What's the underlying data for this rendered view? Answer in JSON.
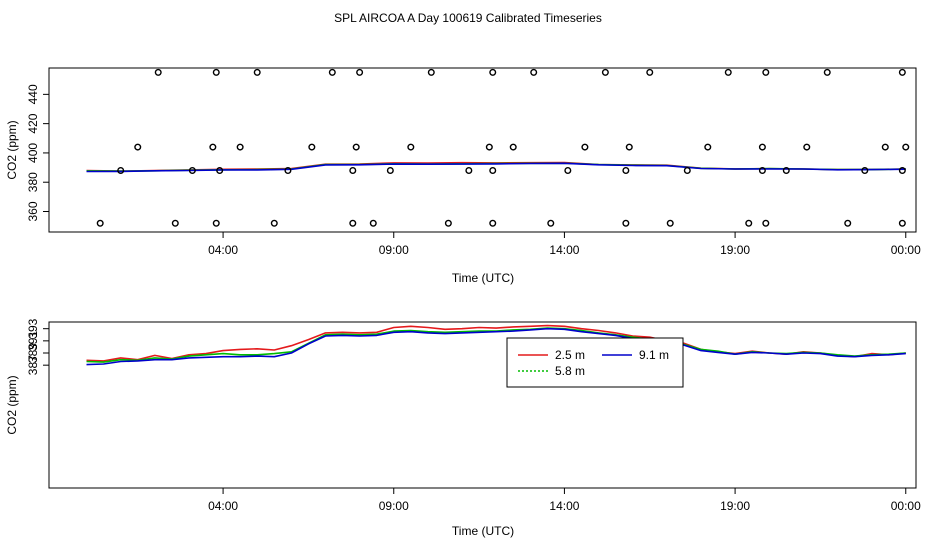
{
  "title": "SPL AIRCOA A  Day 100619  Calibrated Timeseries",
  "chart_data": [
    {
      "type": "line",
      "xlabel": "Time (UTC)",
      "ylabel": "CO2 (ppm)",
      "x_units": "hours since 00:00 UTC",
      "xlim": [
        -1.1,
        24.3
      ],
      "ylim": [
        346,
        458
      ],
      "x_ticks": [
        {
          "value": 4,
          "label": "04:00"
        },
        {
          "value": 9,
          "label": "09:00"
        },
        {
          "value": 14,
          "label": "14:00"
        },
        {
          "value": 19,
          "label": "19:00"
        },
        {
          "value": 24,
          "label": "00:00"
        }
      ],
      "y_ticks": [
        {
          "value": 360,
          "label": "360"
        },
        {
          "value": 380,
          "label": "380"
        },
        {
          "value": 400,
          "label": "400"
        },
        {
          "value": 420,
          "label": "420"
        },
        {
          "value": 440,
          "label": "440"
        }
      ],
      "series": [
        {
          "name": "2.5 m",
          "color": "#e41a1c",
          "x": [
            0,
            1,
            2,
            3,
            4,
            5,
            6,
            7,
            8,
            9,
            10,
            11,
            12,
            13,
            14,
            15,
            16,
            17,
            18,
            19,
            20,
            21,
            22,
            23,
            24
          ],
          "y": [
            388.0,
            387.6,
            387.9,
            388.4,
            388.8,
            389.0,
            389.4,
            392.3,
            392.4,
            393.2,
            393.1,
            393.3,
            393.2,
            393.3,
            393.4,
            392.1,
            391.8,
            391.6,
            389.6,
            389.1,
            389.2,
            389.0,
            388.6,
            388.7,
            389.0
          ]
        },
        {
          "name": "5.8 m",
          "color": "#00bb00",
          "x": [
            0,
            1,
            2,
            3,
            4,
            5,
            6,
            7,
            8,
            9,
            10,
            11,
            12,
            13,
            14,
            15,
            16,
            17,
            18,
            19,
            20,
            21,
            22,
            23,
            24
          ],
          "y": [
            387.7,
            387.6,
            387.8,
            388.2,
            388.5,
            388.6,
            389.0,
            392.0,
            392.1,
            392.6,
            392.4,
            392.6,
            392.7,
            392.9,
            393.0,
            392.0,
            391.6,
            391.4,
            389.5,
            389.0,
            389.3,
            389.0,
            388.6,
            388.6,
            389.0
          ]
        },
        {
          "name": "9.1 m",
          "color": "#0000cc",
          "x": [
            0,
            1,
            2,
            3,
            4,
            5,
            6,
            7,
            8,
            9,
            10,
            11,
            12,
            13,
            14,
            15,
            16,
            17,
            18,
            19,
            20,
            21,
            22,
            23,
            24
          ],
          "y": [
            387.3,
            387.4,
            387.8,
            388.0,
            388.4,
            388.4,
            388.8,
            391.8,
            391.9,
            392.4,
            392.3,
            392.4,
            392.5,
            392.8,
            392.9,
            391.9,
            391.4,
            391.3,
            389.4,
            389.0,
            389.1,
            389.0,
            388.5,
            388.6,
            388.9
          ]
        },
        {
          "name": "",
          "type": "scatter",
          "marker": "open-circle",
          "color": "#000000",
          "x": [
            0.4,
            1.0,
            1.5,
            2.1,
            2.6,
            3.1,
            3.7,
            3.8,
            3.8,
            3.9,
            4.5,
            5.0,
            5.5,
            5.9,
            6.6,
            7.2,
            7.8,
            7.8,
            7.9,
            8.0,
            8.4,
            8.9,
            9.5,
            10.1,
            10.6,
            11.2,
            11.8,
            11.9,
            11.9,
            11.9,
            12.5,
            13.1,
            13.6,
            14.1,
            14.6,
            15.2,
            15.8,
            15.8,
            15.9,
            16.5,
            17.1,
            17.6,
            18.2,
            18.8,
            19.4,
            19.8,
            19.8,
            19.9,
            19.9,
            20.5,
            21.1,
            21.7,
            22.3,
            22.8,
            23.4,
            23.9,
            23.9,
            23.9,
            24.0
          ],
          "y": [
            352,
            388,
            404,
            455,
            352,
            388,
            404,
            455,
            352,
            388,
            404,
            455,
            352,
            388,
            404,
            455,
            352,
            388,
            404,
            455,
            352,
            388,
            404,
            455,
            352,
            388,
            404,
            455,
            352,
            388,
            404,
            455,
            352,
            388,
            404,
            455,
            352,
            388,
            404,
            455,
            352,
            388,
            404,
            455,
            352,
            388,
            404,
            455,
            352,
            388,
            404,
            455,
            352,
            388,
            404,
            455,
            352,
            388,
            404
          ]
        }
      ]
    },
    {
      "type": "line",
      "xlabel": "Time (UTC)",
      "ylabel": "CO2 (ppm)",
      "x_units": "hours since 00:00 UTC",
      "xlim": [
        -1.1,
        24.3
      ],
      "ylim": [
        366.8,
        394.1
      ],
      "x_ticks": [
        {
          "value": 4,
          "label": "04:00"
        },
        {
          "value": 9,
          "label": "09:00"
        },
        {
          "value": 14,
          "label": "14:00"
        },
        {
          "value": 19,
          "label": "19:00"
        },
        {
          "value": 24,
          "label": "00:00"
        }
      ],
      "y_ticks": [
        {
          "value": 387,
          "label": "387"
        },
        {
          "value": 389,
          "label": "389"
        },
        {
          "value": 391,
          "label": "391"
        },
        {
          "value": 393,
          "label": "393"
        }
      ],
      "legend": {
        "position": "top-right-inset",
        "entries": [
          {
            "name": "2.5 m",
            "color": "#e41a1c"
          },
          {
            "name": "9.1 m",
            "color": "#0000cc"
          },
          {
            "name": "5.8 m",
            "color": "#00bb00"
          }
        ]
      },
      "series": [
        {
          "name": "2.5 m",
          "color": "#e41a1c",
          "x": [
            0,
            0.5,
            1,
            1.5,
            2,
            2.5,
            3,
            3.5,
            4,
            4.5,
            5,
            5.5,
            6,
            6.5,
            7,
            7.5,
            8,
            8.5,
            9,
            9.5,
            10,
            10.5,
            11,
            11.5,
            12,
            12.5,
            13,
            13.5,
            14,
            14.5,
            15,
            15.5,
            16,
            16.5,
            17,
            17.5,
            18,
            18.5,
            19,
            19.5,
            20,
            20.5,
            21,
            21.5,
            22,
            22.5,
            23,
            23.5,
            24
          ],
          "y": [
            387.8,
            387.7,
            388.2,
            387.9,
            388.6,
            388.1,
            388.7,
            388.9,
            389.4,
            389.6,
            389.7,
            389.5,
            390.2,
            391.2,
            392.3,
            392.4,
            392.3,
            392.4,
            393.2,
            393.4,
            393.2,
            392.9,
            393.0,
            393.2,
            393.1,
            393.3,
            393.4,
            393.5,
            393.4,
            393.0,
            392.7,
            392.3,
            391.8,
            391.6,
            391.0,
            390.6,
            389.6,
            389.2,
            388.9,
            389.3,
            389.0,
            388.8,
            389.2,
            389.0,
            388.6,
            388.4,
            388.9,
            388.7,
            389.0
          ]
        },
        {
          "name": "5.8 m",
          "color": "#00bb00",
          "x": [
            0,
            0.5,
            1,
            1.5,
            2,
            2.5,
            3,
            3.5,
            4,
            4.5,
            5,
            5.5,
            6,
            6.5,
            7,
            7.5,
            8,
            8.5,
            9,
            9.5,
            10,
            10.5,
            11,
            11.5,
            12,
            12.5,
            13,
            13.5,
            14,
            14.5,
            15,
            15.5,
            16,
            16.5,
            17,
            17.5,
            18,
            18.5,
            19,
            19.5,
            20,
            20.5,
            21,
            21.5,
            22,
            22.5,
            23,
            23.5,
            24
          ],
          "y": [
            387.6,
            387.5,
            387.9,
            387.8,
            388.2,
            388.0,
            388.5,
            388.7,
            388.9,
            388.7,
            388.7,
            388.9,
            389.2,
            390.6,
            392.0,
            392.1,
            392.0,
            392.1,
            392.6,
            392.7,
            392.5,
            392.4,
            392.5,
            392.6,
            392.6,
            392.8,
            392.9,
            393.1,
            393.0,
            392.7,
            392.3,
            392.0,
            391.6,
            391.3,
            390.8,
            390.4,
            389.6,
            389.3,
            388.8,
            389.2,
            389.0,
            388.9,
            389.1,
            389.0,
            388.7,
            388.5,
            388.7,
            388.8,
            389.0
          ]
        },
        {
          "name": "9.1 m",
          "color": "#0000cc",
          "x": [
            0,
            0.5,
            1,
            1.5,
            2,
            2.5,
            3,
            3.5,
            4,
            4.5,
            5,
            5.5,
            6,
            6.5,
            7,
            7.5,
            8,
            8.5,
            9,
            9.5,
            10,
            10.5,
            11,
            11.5,
            12,
            12.5,
            13,
            13.5,
            14,
            14.5,
            15,
            15.5,
            16,
            16.5,
            17,
            17.5,
            18,
            18.5,
            19,
            19.5,
            20,
            20.5,
            21,
            21.5,
            22,
            22.5,
            23,
            23.5,
            24
          ],
          "y": [
            387.1,
            387.2,
            387.6,
            387.7,
            387.9,
            387.9,
            388.2,
            388.3,
            388.4,
            388.4,
            388.5,
            388.4,
            389.0,
            390.5,
            391.8,
            391.9,
            391.8,
            391.9,
            392.4,
            392.5,
            392.3,
            392.2,
            392.3,
            392.4,
            392.5,
            392.6,
            392.8,
            393.0,
            392.9,
            392.5,
            392.2,
            391.9,
            391.4,
            391.2,
            390.7,
            390.3,
            389.4,
            389.1,
            388.8,
            389.1,
            389.0,
            388.8,
            389.0,
            388.9,
            388.5,
            388.4,
            388.6,
            388.7,
            388.9
          ]
        }
      ]
    }
  ]
}
